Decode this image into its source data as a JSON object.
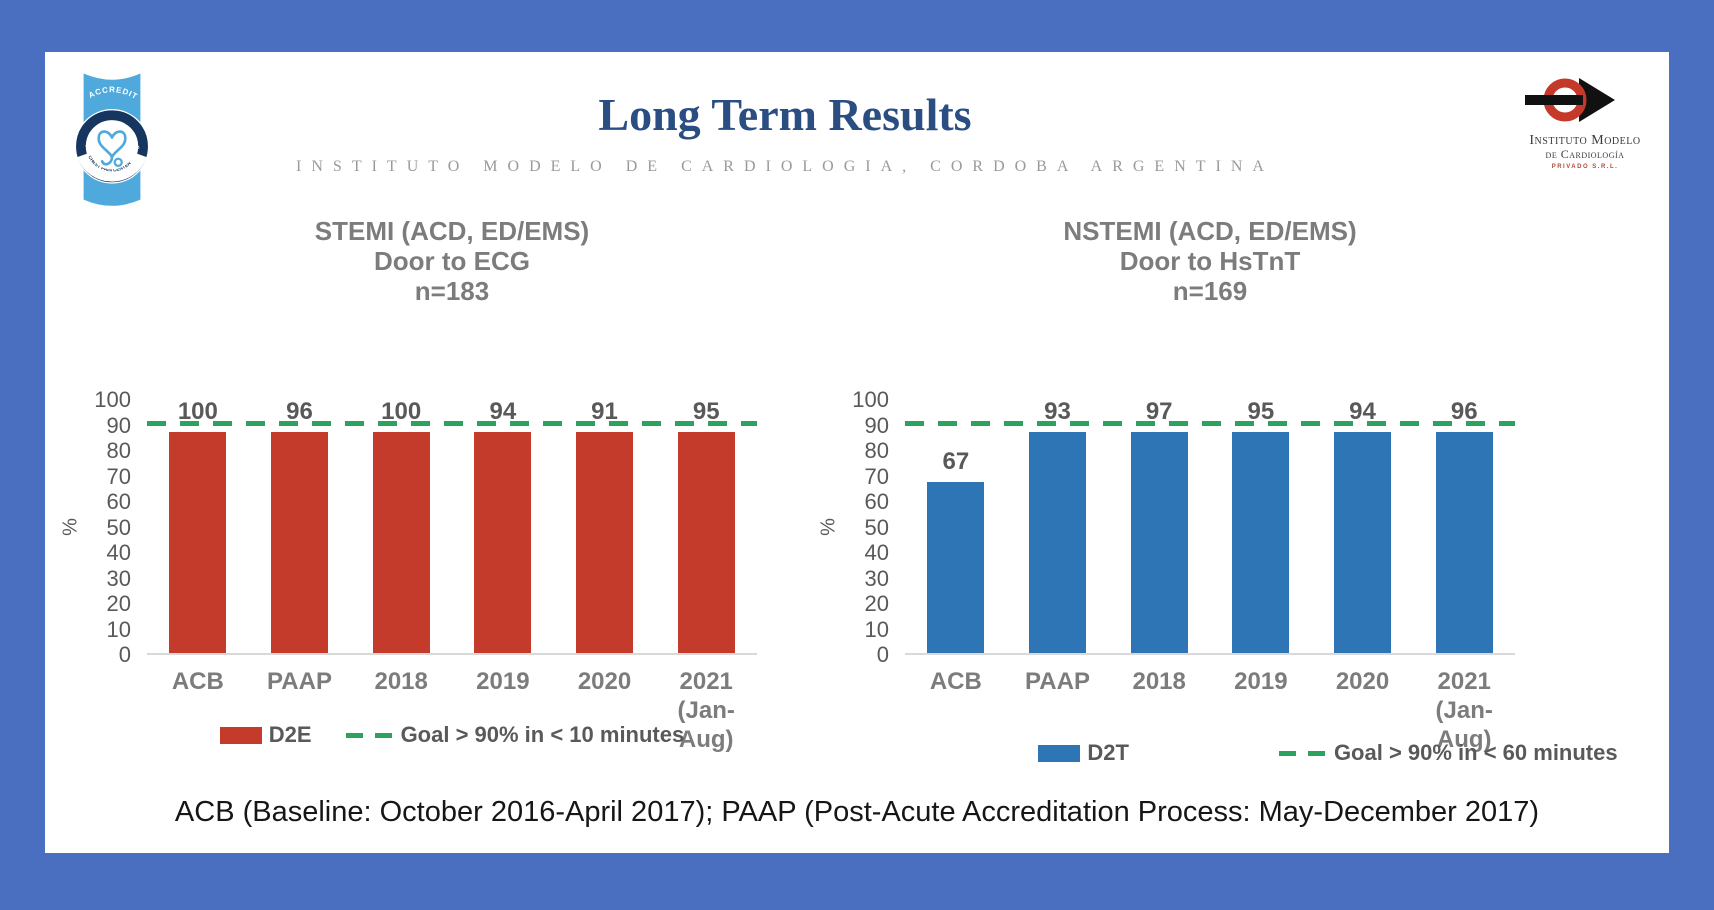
{
  "slide": {
    "title": "Long Term Results",
    "subtitle": "INSTITUTO MODELO DE CARDIOLOGIA, CORDOBA ARGENTINA",
    "footnote": "ACB (Baseline: October 2016-April 2017); PAAP (Post-Acute Accreditation Process: May-December 2017)"
  },
  "logos": {
    "acc_badge": {
      "banner": "ACCREDITED",
      "ring_top": "AMERICAN COLLEGE OF CARDIOLOGY",
      "ring_bottom": "CHEST PAIN CENTER"
    },
    "imc": {
      "line1": "Instituto Modelo",
      "line2": "de Cardiología",
      "line3": "PRIVADO S.R.L."
    }
  },
  "colors": {
    "frame_blue": "#4a6fc1",
    "title_navy": "#2a4e82",
    "stemi_red": "#c43b2b",
    "nstemi_blue": "#2e75b6",
    "goal_green": "#2ba35f",
    "axis_gray": "#595959"
  },
  "chart_data": [
    {
      "type": "bar",
      "title_lines": [
        "STEMI (ACD, ED/EMS)",
        "Door to ECG",
        "n=183"
      ],
      "categories": [
        "ACB",
        "PAAP",
        "2018",
        "2019",
        "2020",
        "2021"
      ],
      "last_category_sub": "(Jan-Aug)",
      "values": [
        100,
        96,
        100,
        94,
        91,
        95
      ],
      "ylabel": "%",
      "ylim": [
        0,
        100
      ],
      "yticks": [
        0,
        10,
        20,
        30,
        40,
        50,
        60,
        70,
        80,
        90,
        100
      ],
      "grid": false,
      "goal_value": 90,
      "bar_color": "#c43b2b",
      "goal_color": "#2ba35f",
      "legend": [
        {
          "label": "D2E",
          "type": "bar"
        },
        {
          "label": "Goal > 90% in < 10 minutes",
          "type": "dash"
        }
      ],
      "legend_position": "bottom"
    },
    {
      "type": "bar",
      "title_lines": [
        "NSTEMI (ACD, ED/EMS)",
        "Door to HsTnT",
        "n=169"
      ],
      "categories": [
        "ACB",
        "PAAP",
        "2018",
        "2019",
        "2020",
        "2021"
      ],
      "last_category_sub": "(Jan-Aug)",
      "values": [
        67,
        93,
        97,
        95,
        94,
        96
      ],
      "ylabel": "%",
      "ylim": [
        0,
        100
      ],
      "yticks": [
        0,
        10,
        20,
        30,
        40,
        50,
        60,
        70,
        80,
        90,
        100
      ],
      "grid": false,
      "goal_value": 90,
      "bar_color": "#2e75b6",
      "goal_color": "#2ba35f",
      "legend": [
        {
          "label": "D2T",
          "type": "bar"
        },
        {
          "label": "Goal > 90% in < 60 minutes",
          "type": "dash"
        }
      ],
      "legend_position": "bottom"
    }
  ]
}
